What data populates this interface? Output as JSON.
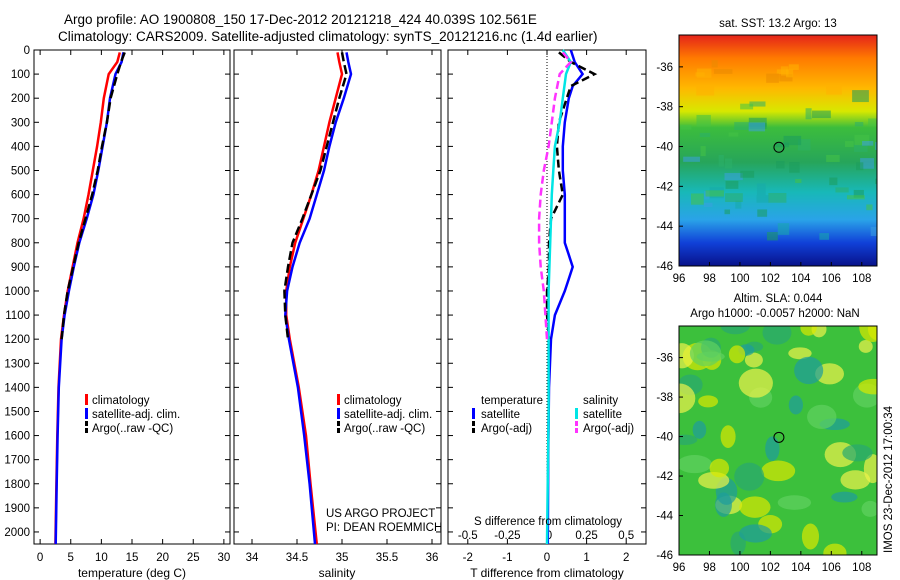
{
  "header": {
    "line1": "Argo profile: AO 1900808_150 17-Dec-2012 20121218_424 40.039S 102.561E",
    "line2": "Climatology: CARS2009. Satellite-adjusted climatology: synTS_20121216.nc (1.4d earlier)"
  },
  "colors": {
    "clim": "#ff0000",
    "sat": "#0000ff",
    "argo": "#000000",
    "sal_sat": "#00e5e5",
    "sal_argo": "#ff33ff"
  },
  "footer": {
    "project": "US ARGO PROJECT",
    "pi": "PI: DEAN ROEMMICH",
    "stamp": "IMOS 23-Dec-2012 17:00:34"
  },
  "chart_data": [
    {
      "type": "line",
      "xlabel": "temperature (deg C)",
      "xlim": [
        -1,
        31
      ],
      "xticks": [
        0,
        5,
        10,
        15,
        20,
        25,
        30
      ],
      "ylim": [
        2050,
        0
      ],
      "yticks": [
        0,
        100,
        200,
        300,
        400,
        500,
        600,
        700,
        800,
        900,
        1000,
        1100,
        1200,
        1300,
        1400,
        1500,
        1600,
        1700,
        1800,
        1900,
        2000
      ],
      "legend": [
        "climatology",
        "satellite-adj. clim.",
        "Argo(..raw -QC)"
      ],
      "legend_position": "lower-right",
      "series": [
        {
          "name": "climatology",
          "depth": [
            10,
            50,
            100,
            200,
            300,
            400,
            500,
            600,
            700,
            800,
            900,
            1000,
            1100,
            1200,
            1400,
            1600,
            1800,
            2050
          ],
          "values": [
            13.0,
            12.6,
            11.2,
            10.4,
            9.9,
            9.3,
            8.6,
            7.9,
            7.1,
            6.1,
            5.3,
            4.5,
            3.9,
            3.4,
            3.0,
            2.8,
            2.65,
            2.5
          ]
        },
        {
          "name": "satellite-adj. clim.",
          "depth": [
            10,
            50,
            100,
            200,
            300,
            400,
            500,
            600,
            700,
            800,
            900,
            1000,
            1100,
            1200,
            1400,
            1600,
            1800,
            2050
          ],
          "values": [
            13.6,
            13.3,
            12.3,
            11.4,
            10.9,
            10.2,
            9.5,
            8.7,
            7.6,
            6.4,
            5.5,
            4.7,
            4.0,
            3.5,
            3.05,
            2.85,
            2.7,
            2.55
          ]
        },
        {
          "name": "Argo(..raw -QC)",
          "depth": [
            10,
            50,
            100,
            200,
            300,
            400,
            500,
            600,
            700,
            800,
            900,
            1000,
            1100,
            1200
          ],
          "values": [
            13.8,
            13.2,
            12.6,
            11.5,
            10.9,
            10.1,
            9.4,
            8.5,
            7.4,
            6.3,
            5.4,
            4.5,
            3.9,
            3.5
          ]
        }
      ]
    },
    {
      "type": "line",
      "xlabel": "salinity",
      "xlim": [
        33.8,
        36.1
      ],
      "xticks": [
        34,
        34.5,
        35,
        35.5,
        36
      ],
      "ylim": [
        2050,
        0
      ],
      "legend": [
        "climatology",
        "satellite-adj. clim.",
        "Argo(..raw -QC)"
      ],
      "legend_position": "lower-right",
      "series": [
        {
          "name": "climatology",
          "depth": [
            10,
            50,
            100,
            200,
            300,
            400,
            500,
            600,
            700,
            800,
            900,
            1000,
            1100,
            1200,
            1400,
            1600,
            1800,
            2050
          ],
          "values": [
            34.95,
            34.97,
            35.0,
            34.93,
            34.86,
            34.8,
            34.74,
            34.66,
            34.57,
            34.48,
            34.42,
            34.38,
            34.38,
            34.42,
            34.52,
            34.6,
            34.65,
            34.72
          ]
        },
        {
          "name": "satellite-adj. clim.",
          "depth": [
            10,
            50,
            100,
            200,
            300,
            400,
            500,
            600,
            700,
            800,
            900,
            1000,
            1100,
            1200,
            1400,
            1600,
            1800,
            2050
          ],
          "values": [
            35.05,
            35.07,
            35.1,
            35.02,
            34.93,
            34.86,
            34.8,
            34.72,
            34.64,
            34.53,
            34.45,
            34.39,
            34.37,
            34.41,
            34.51,
            34.58,
            34.64,
            34.7
          ]
        },
        {
          "name": "Argo(..raw -QC)",
          "depth": [
            10,
            50,
            100,
            200,
            300,
            400,
            500,
            600,
            700,
            800,
            900,
            1000,
            1100,
            1200
          ],
          "values": [
            35.0,
            35.02,
            35.05,
            34.97,
            34.9,
            34.83,
            34.76,
            34.66,
            34.56,
            34.45,
            34.4,
            34.36,
            34.37,
            34.4
          ]
        }
      ]
    },
    {
      "type": "line",
      "xlabel": "T difference from climatology",
      "top_xlabel": "S difference from climatology",
      "xlim": [
        -2.5,
        2.5
      ],
      "xticks": [
        -2,
        -1,
        0,
        1,
        2
      ],
      "top_xticks": [
        "-0.5",
        "-0.25",
        "0",
        "0.25",
        "0.5"
      ],
      "ylim": [
        2050,
        0
      ],
      "legend_groups": [
        "temperature",
        "salinity"
      ],
      "legend": [
        "satellite",
        "Argo(-adj)",
        "satellite",
        "Argo(-adj)"
      ],
      "series": [
        {
          "name": "satellite",
          "group": "temperature",
          "depth": [
            0,
            50,
            100,
            150,
            200,
            300,
            400,
            500,
            600,
            700,
            800,
            850,
            900,
            950,
            1000,
            1100,
            1200,
            1400,
            1700,
            2050
          ],
          "values": [
            0.6,
            0.7,
            0.9,
            0.65,
            0.55,
            0.45,
            0.4,
            0.4,
            0.45,
            0.45,
            0.45,
            0.55,
            0.65,
            0.55,
            0.45,
            0.2,
            0.1,
            0.05,
            0.03,
            0.02
          ]
        },
        {
          "name": "Argo(-adj)",
          "group": "temperature",
          "depth": [
            10,
            50,
            100,
            150,
            200,
            300,
            400,
            500,
            600,
            700,
            800,
            900,
            1000,
            1100,
            1200
          ],
          "values": [
            0.3,
            0.6,
            1.2,
            0.6,
            0.5,
            0.3,
            0.25,
            0.3,
            0.4,
            0.1,
            0.05,
            0.05,
            0.0,
            0.0,
            0.05
          ]
        },
        {
          "name": "satellite",
          "group": "salinity",
          "depth": [
            0,
            50,
            100,
            200,
            300,
            400,
            500,
            600,
            800,
            1000,
            1200,
            1500,
            2050
          ],
          "values": [
            0.1,
            0.15,
            0.12,
            0.1,
            0.08,
            0.05,
            0.04,
            0.03,
            0.02,
            0.01,
            0.01,
            0.01,
            0.0
          ]
        },
        {
          "name": "Argo(-adj)",
          "group": "salinity",
          "depth": [
            10,
            50,
            100,
            200,
            300,
            400,
            500,
            600,
            700,
            800,
            900,
            1000,
            1100,
            1200
          ],
          "values": [
            0.1,
            0.15,
            0.08,
            0.05,
            0.03,
            0.01,
            -0.02,
            -0.04,
            -0.05,
            -0.05,
            -0.04,
            -0.02,
            -0.01,
            0.0
          ]
        }
      ]
    },
    {
      "type": "heatmap",
      "title": "sat. SST: 13.2 Argo: 13",
      "xlim": [
        96,
        109
      ],
      "ylim": [
        -46,
        -34.4
      ],
      "xticks": [
        96,
        98,
        100,
        102,
        104,
        106,
        108
      ],
      "yticks": [
        -36,
        -38,
        -40,
        -42,
        -44,
        -46
      ],
      "marker": {
        "lon": 102.561,
        "lat": -40.039
      }
    },
    {
      "type": "heatmap",
      "title": "Altim. SLA: 0.044",
      "subtitle": "Argo h1000: -0.0057 h2000: NaN",
      "xlim": [
        96,
        109
      ],
      "ylim": [
        -46,
        -34.4
      ],
      "xticks": [
        96,
        98,
        100,
        102,
        104,
        106,
        108
      ],
      "yticks": [
        -36,
        -38,
        -40,
        -42,
        -44,
        -46
      ],
      "marker": {
        "lon": 102.561,
        "lat": -40.039
      }
    }
  ]
}
